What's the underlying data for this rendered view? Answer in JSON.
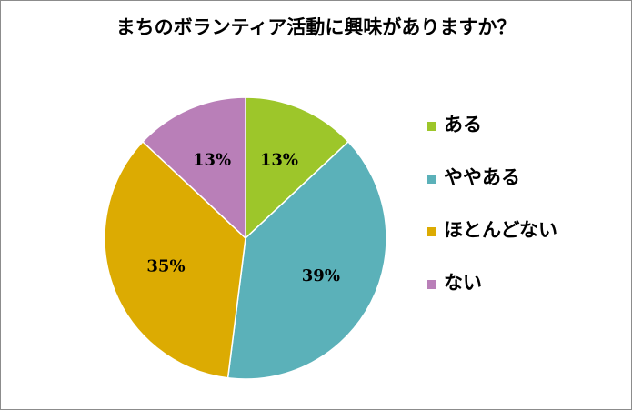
{
  "chart_data": {
    "type": "pie",
    "title": "まちのボランティア活動に興味がありますか？",
    "start_angle_deg": 0,
    "direction": "clockwise",
    "legend_position": "right",
    "slices": [
      {
        "label": "ある",
        "value": 13,
        "display": "13%",
        "color": "#9dc62a"
      },
      {
        "label": "ややある",
        "value": 39,
        "display": "39%",
        "color": "#5bb1b9"
      },
      {
        "label": "ほとんどない",
        "value": 35,
        "display": "35%",
        "color": "#dcab02"
      },
      {
        "label": "ない",
        "value": 13,
        "display": "13%",
        "color": "#b97fb8"
      }
    ]
  }
}
